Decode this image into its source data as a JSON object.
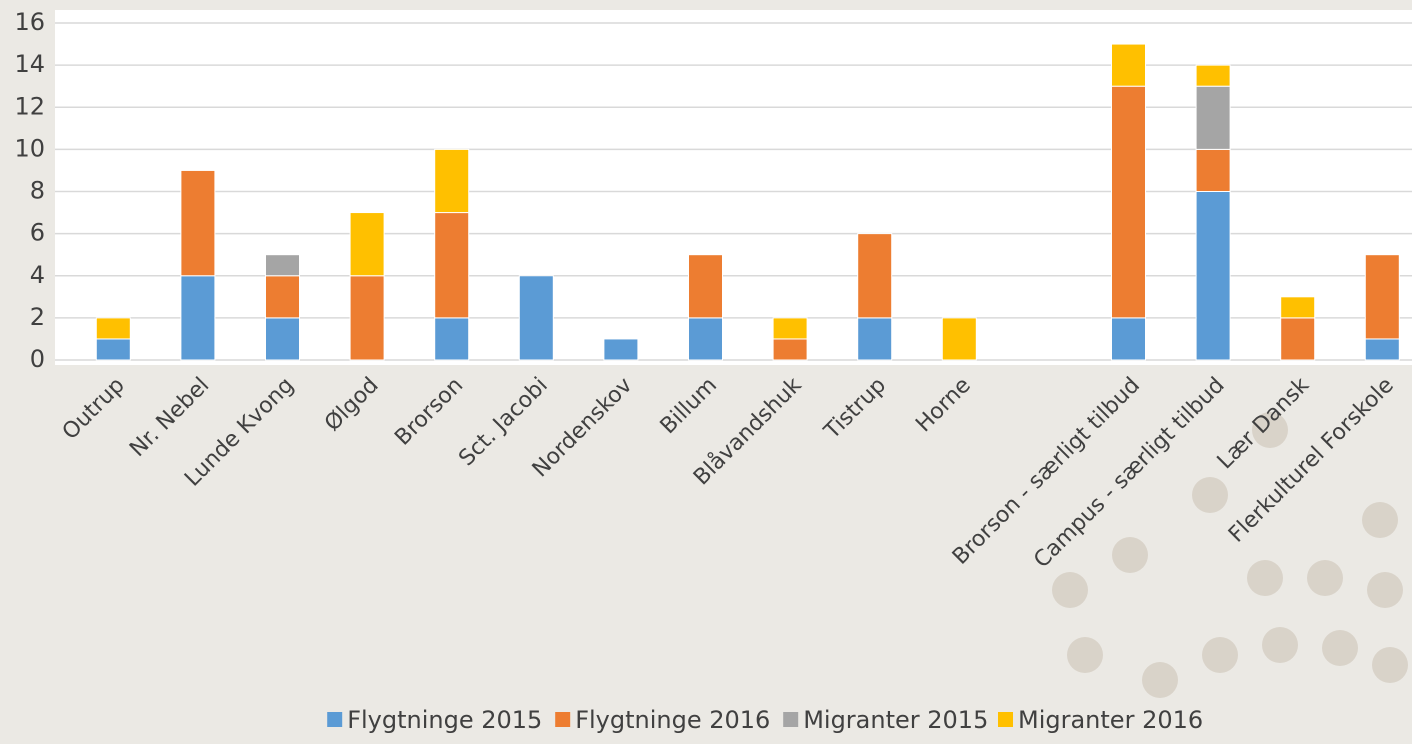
{
  "chart_data": {
    "type": "bar",
    "stacked": true,
    "categories": [
      "Outrup",
      "Nr. Nebel",
      "Lunde Kvong",
      "Ølgod",
      "Brorson",
      "Sct. Jacobi",
      "Nordenskov",
      "Billum",
      "Blåvandshuk",
      "Tistrup",
      "Horne",
      null,
      "Brorson - særligt tilbud",
      "Campus - særligt tilbud",
      "Lær Dansk",
      "Flerkulturel Forskole"
    ],
    "series": [
      {
        "name": "Flygtninge 2015",
        "color": "#5b9bd5",
        "values": [
          1,
          4,
          2,
          0,
          2,
          4,
          1,
          2,
          0,
          2,
          0,
          0,
          2,
          8,
          0,
          1
        ]
      },
      {
        "name": "Flygtninge 2016",
        "color": "#ed7d31",
        "values": [
          0,
          5,
          2,
          4,
          5,
          0,
          0,
          3,
          1,
          4,
          0,
          0,
          11,
          2,
          2,
          4
        ]
      },
      {
        "name": "Migranter 2015",
        "color": "#a5a5a5",
        "values": [
          0,
          0,
          1,
          0,
          0,
          0,
          0,
          0,
          0,
          0,
          0,
          0,
          0,
          3,
          0,
          0
        ]
      },
      {
        "name": "Migranter 2016",
        "color": "#ffc000",
        "values": [
          1,
          0,
          0,
          3,
          3,
          0,
          0,
          0,
          1,
          0,
          2,
          0,
          2,
          1,
          1,
          0
        ]
      }
    ],
    "ylim": [
      0,
      16
    ],
    "yticks": [
      0,
      2,
      4,
      6,
      8,
      10,
      12,
      14,
      16
    ],
    "grid": true,
    "legend": "bottom"
  }
}
